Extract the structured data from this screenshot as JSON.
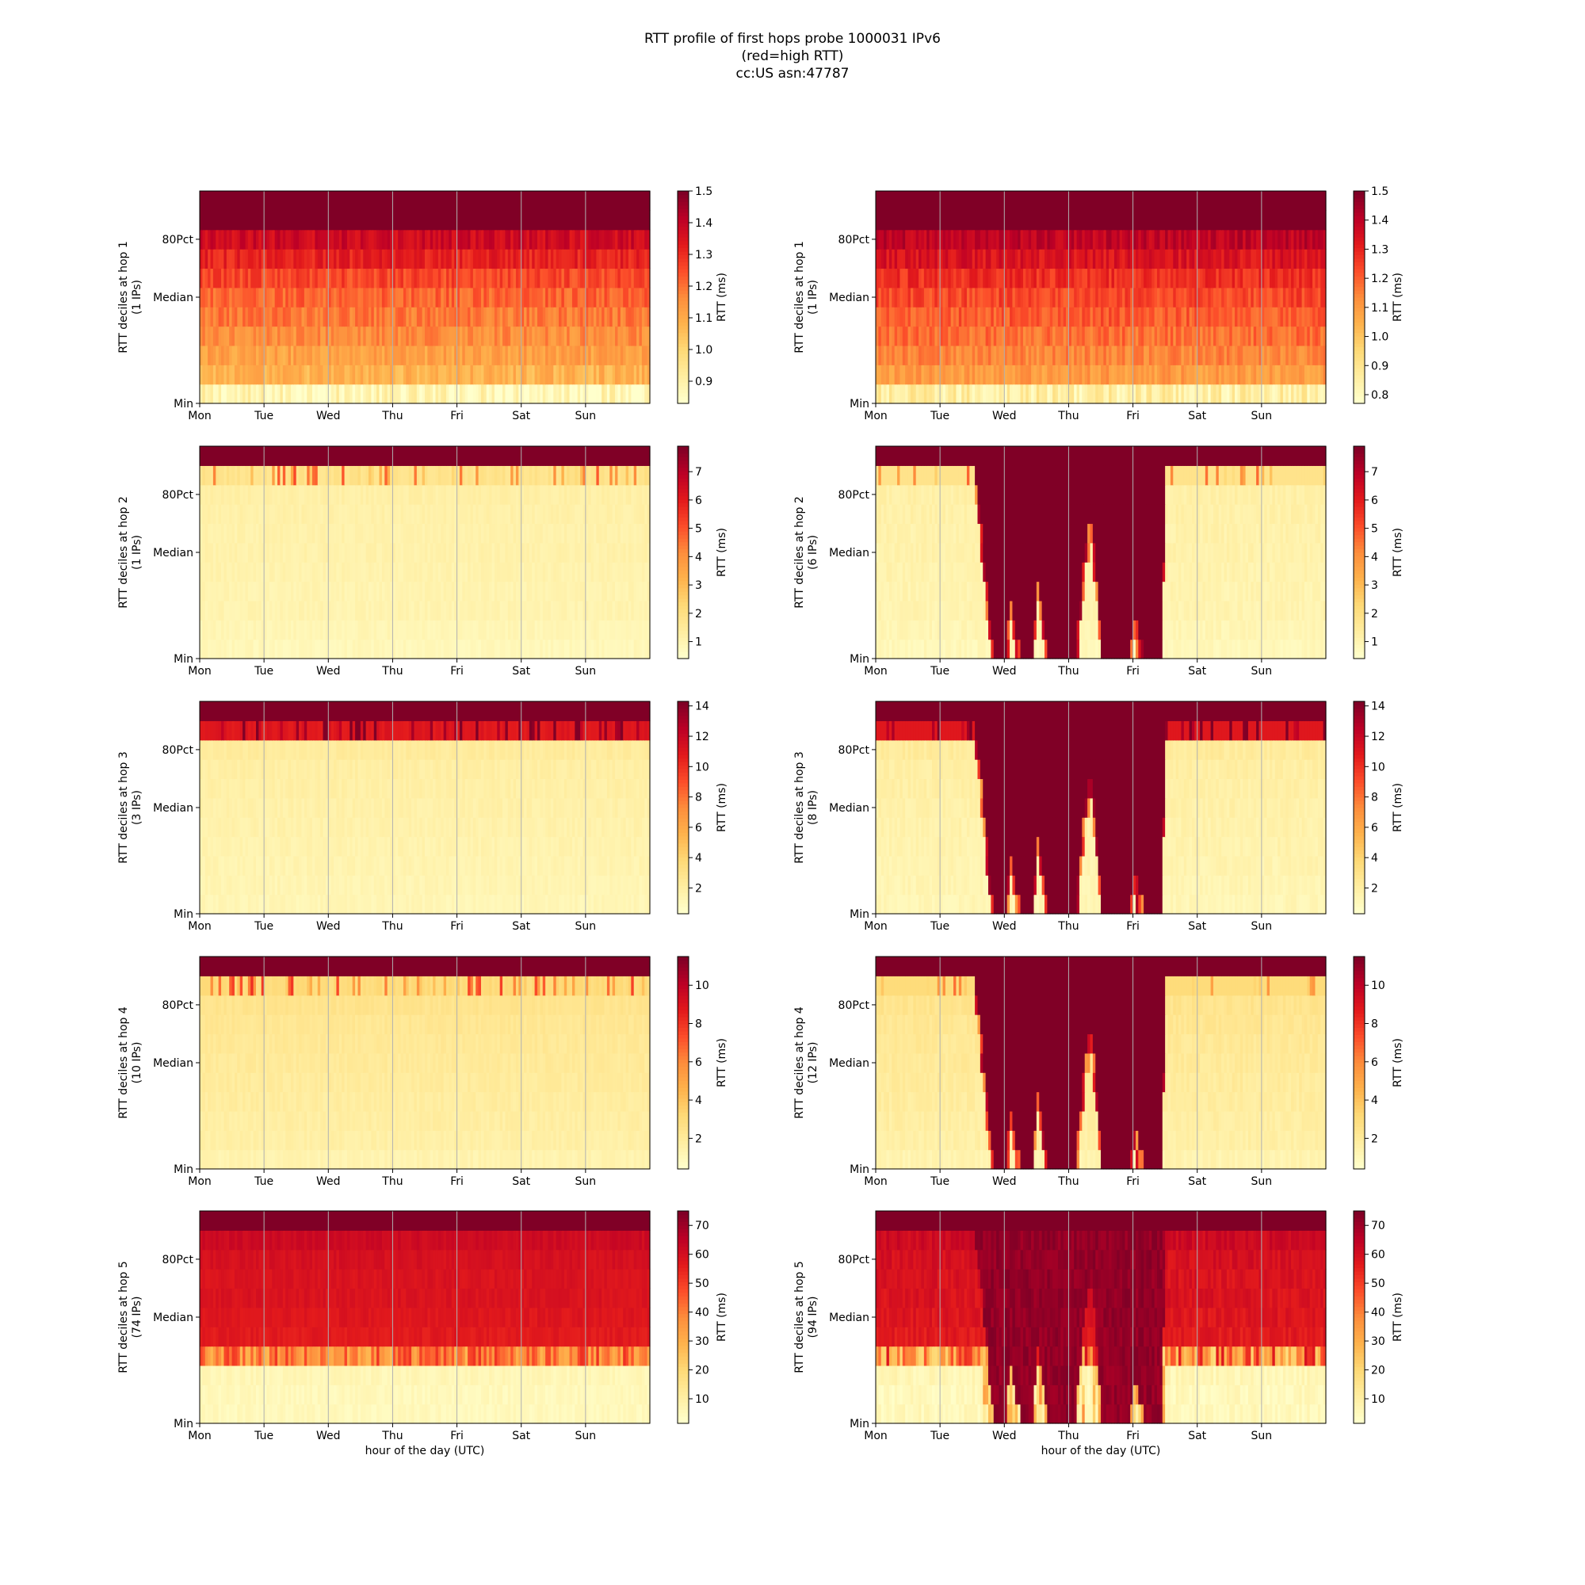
{
  "title_lines": [
    "RTT profile of first hops probe 1000031 IPv6",
    "(red=high RTT)",
    "cc:US asn:47787"
  ],
  "shared": {
    "day_labels": [
      "Mon",
      "Tue",
      "Wed",
      "Thu",
      "Fri",
      "Sat",
      "Sun"
    ],
    "decile_labels": [
      "Min",
      "Median",
      "80Pct"
    ],
    "xlabel": "hour of the day (UTC)",
    "colorbar_label": "RTT (ms)",
    "colormap": [
      "#ffffcc",
      "#ffeda0",
      "#fed976",
      "#feb24c",
      "#fd8d3c",
      "#fc4e2a",
      "#e31a1c",
      "#bd0026",
      "#800026"
    ]
  },
  "chart_data": [
    {
      "type": "heatmap",
      "hop": 1,
      "column": "left",
      "ylabel": "RTT deciles at hop 1",
      "ips": "(1 IPs)",
      "clim": [
        0.83,
        1.5
      ],
      "ticks": [
        "0.9",
        "1.0",
        "1.1",
        "1.2",
        "1.3",
        "1.4",
        "1.5"
      ],
      "pattern": "gradient",
      "deciles_ms": [
        0.87,
        1.08,
        1.12,
        1.16,
        1.19,
        1.22,
        1.26,
        1.32,
        1.38,
        1.46,
        1.5
      ]
    },
    {
      "type": "heatmap",
      "hop": 1,
      "column": "right",
      "ylabel": "RTT deciles at hop 1",
      "ips": "(1 IPs)",
      "clim": [
        0.77,
        1.5
      ],
      "ticks": [
        "0.8",
        "0.9",
        "1.0",
        "1.1",
        "1.2",
        "1.3",
        "1.4",
        "1.5"
      ],
      "pattern": "gradient",
      "deciles_ms": [
        0.85,
        1.1,
        1.14,
        1.18,
        1.21,
        1.24,
        1.28,
        1.34,
        1.4,
        1.46,
        1.5
      ]
    },
    {
      "type": "heatmap",
      "hop": 2,
      "column": "left",
      "ylabel": "RTT deciles at hop 2",
      "ips": "(1 IPs)",
      "clim": [
        0.4,
        7.9
      ],
      "ticks": [
        "1",
        "2",
        "3",
        "4",
        "5",
        "6",
        "7"
      ],
      "pattern": "low",
      "deciles_ms": [
        0.8,
        0.9,
        1.0,
        1.0,
        1.05,
        1.1,
        1.1,
        1.15,
        1.2,
        1.8,
        7.9
      ]
    },
    {
      "type": "heatmap",
      "hop": 2,
      "column": "right",
      "ylabel": "RTT deciles at hop 2",
      "ips": "(6 IPs)",
      "clim": [
        0.4,
        7.9
      ],
      "ticks": [
        "1",
        "2",
        "3",
        "4",
        "5",
        "6",
        "7"
      ],
      "pattern": "outage",
      "deciles_ms": [
        0.8,
        0.9,
        1.0,
        1.0,
        1.05,
        1.1,
        1.1,
        1.15,
        1.2,
        1.8,
        7.9
      ]
    },
    {
      "type": "heatmap",
      "hop": 3,
      "column": "left",
      "ylabel": "RTT deciles at hop 3",
      "ips": "(3 IPs)",
      "clim": [
        0.3,
        14.3
      ],
      "ticks": [
        "2",
        "4",
        "6",
        "8",
        "10",
        "12",
        "14"
      ],
      "pattern": "low",
      "deciles_ms": [
        1.2,
        1.3,
        1.4,
        1.5,
        1.6,
        1.7,
        1.8,
        1.9,
        2.2,
        11.0,
        14.3
      ]
    },
    {
      "type": "heatmap",
      "hop": 3,
      "column": "right",
      "ylabel": "RTT deciles at hop 3",
      "ips": "(8 IPs)",
      "clim": [
        0.3,
        14.3
      ],
      "ticks": [
        "2",
        "4",
        "6",
        "8",
        "10",
        "12",
        "14"
      ],
      "pattern": "outage",
      "deciles_ms": [
        1.2,
        1.3,
        1.4,
        1.5,
        1.6,
        1.7,
        1.8,
        1.9,
        2.2,
        11.0,
        14.3
      ]
    },
    {
      "type": "heatmap",
      "hop": 4,
      "column": "left",
      "ylabel": "RTT deciles at hop 4",
      "ips": "(10 IPs)",
      "clim": [
        0.4,
        11.5
      ],
      "ticks": [
        "2",
        "4",
        "6",
        "8",
        "10"
      ],
      "pattern": "low",
      "deciles_ms": [
        1.3,
        1.6,
        1.7,
        1.8,
        1.9,
        2.0,
        2.1,
        2.2,
        2.4,
        3.0,
        11.5
      ]
    },
    {
      "type": "heatmap",
      "hop": 4,
      "column": "right",
      "ylabel": "RTT deciles at hop 4",
      "ips": "(12 IPs)",
      "clim": [
        0.4,
        11.5
      ],
      "ticks": [
        "2",
        "4",
        "6",
        "8",
        "10"
      ],
      "pattern": "outage",
      "deciles_ms": [
        1.3,
        1.6,
        1.7,
        1.8,
        1.9,
        2.0,
        2.1,
        2.2,
        2.4,
        3.0,
        11.5
      ]
    },
    {
      "type": "heatmap",
      "hop": 5,
      "column": "left",
      "ylabel": "RTT deciles at hop 5",
      "ips": "(74 IPs)",
      "clim": [
        1.5,
        75
      ],
      "ticks": [
        "10",
        "20",
        "30",
        "40",
        "50",
        "60",
        "70"
      ],
      "pattern": "hop5",
      "deciles_ms": [
        5,
        5,
        6,
        30,
        57,
        58,
        59,
        59,
        60,
        62,
        75
      ]
    },
    {
      "type": "heatmap",
      "hop": 5,
      "column": "right",
      "ylabel": "RTT deciles at hop 5",
      "ips": "(94 IPs)",
      "clim": [
        1.5,
        75
      ],
      "ticks": [
        "10",
        "20",
        "30",
        "40",
        "50",
        "60",
        "70"
      ],
      "pattern": "hop5outage",
      "deciles_ms": [
        5,
        5,
        6,
        30,
        57,
        58,
        59,
        59,
        60,
        62,
        75
      ]
    }
  ]
}
